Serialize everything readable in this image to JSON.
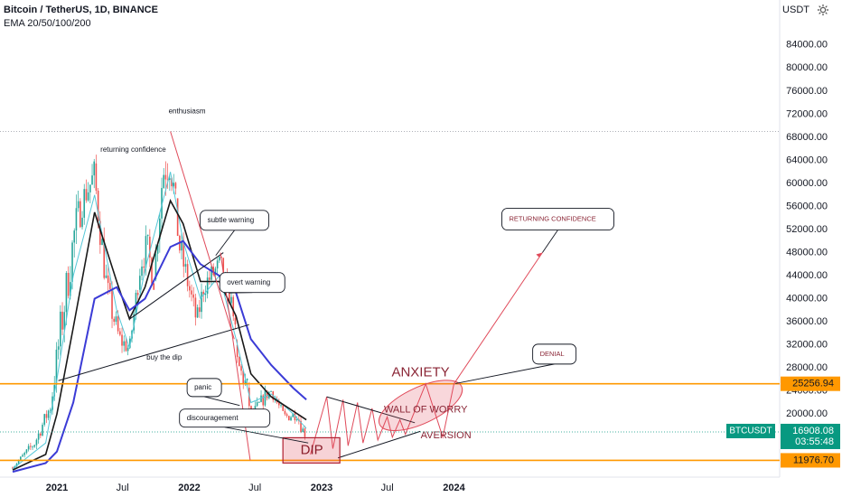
{
  "header": {
    "title": "Bitcoin / TetherUS, 1D, BINANCE",
    "indicator": "EMA 20/50/100/200",
    "currency": "USDT"
  },
  "icons": {
    "settings": "gear-icon"
  },
  "colors": {
    "candle_up": "#26a69a",
    "candle_down": "#ef5350",
    "ema20": "#55c8d8",
    "ema50": "#191919",
    "ema100": "#3b3bd6",
    "support_line": "#ff9800",
    "annotation_red": "#e04a5a",
    "tag_green": "#089981"
  },
  "chart_data": {
    "type": "line",
    "title": "Bitcoin / TetherUS, 1D, BINANCE",
    "indicator": "EMA 20/50/100/200",
    "y_axis_ticks": [
      "84000.00",
      "80000.00",
      "76000.00",
      "72000.00",
      "68000.00",
      "64000.00",
      "60000.00",
      "56000.00",
      "52000.00",
      "48000.00",
      "44000.00",
      "40000.00",
      "36000.00",
      "32000.00",
      "28000.00",
      "24000.00",
      "20000.00"
    ],
    "x_axis_ticks": [
      "2021",
      "Jul",
      "2022",
      "Jul",
      "2023",
      "Jul",
      "2024"
    ],
    "ylim": [
      8000,
      90000
    ],
    "series": [
      {
        "name": "EMA 20",
        "color": "#55c8d8",
        "x": [
          "2020-09-01",
          "2020-12-01",
          "2021-01-01",
          "2021-02-15",
          "2021-04-15",
          "2021-06-15",
          "2021-07-20",
          "2021-09-01",
          "2021-11-10",
          "2021-12-15",
          "2022-02-01",
          "2022-03-25",
          "2022-05-10",
          "2022-06-20",
          "2022-08-15",
          "2022-10-15",
          "2022-11-20"
        ],
        "values": [
          10500,
          15000,
          26000,
          44000,
          58000,
          38000,
          31500,
          45000,
          62000,
          50000,
          40000,
          44000,
          33000,
          22000,
          23500,
          20000,
          17500
        ]
      },
      {
        "name": "EMA 50",
        "color": "#191919",
        "x": [
          "2020-09-01",
          "2020-12-01",
          "2021-01-01",
          "2021-02-15",
          "2021-04-15",
          "2021-06-15",
          "2021-07-20",
          "2021-09-01",
          "2021-11-10",
          "2021-12-15",
          "2022-02-01",
          "2022-03-25",
          "2022-05-10",
          "2022-06-20",
          "2022-08-15",
          "2022-10-15",
          "2022-11-20"
        ],
        "values": [
          10300,
          13000,
          20000,
          35000,
          55000,
          43000,
          36500,
          42000,
          57000,
          53000,
          43000,
          43000,
          37000,
          27000,
          23000,
          20500,
          19000
        ]
      },
      {
        "name": "EMA 100",
        "color": "#3b3bd6",
        "x": [
          "2020-09-01",
          "2020-12-01",
          "2021-01-01",
          "2021-02-15",
          "2021-04-15",
          "2021-06-15",
          "2021-07-20",
          "2021-09-01",
          "2021-11-10",
          "2021-12-15",
          "2022-02-01",
          "2022-03-25",
          "2022-05-10",
          "2022-06-20",
          "2022-08-15",
          "2022-10-15",
          "2022-11-20"
        ],
        "values": [
          10000,
          11500,
          13500,
          22000,
          40000,
          42000,
          38000,
          40000,
          49000,
          50000,
          46000,
          44000,
          41000,
          33000,
          28500,
          24500,
          22500
        ]
      }
    ],
    "price_range_context": {
      "high": 69000,
      "high_date": "2021-11-10",
      "low": 15500,
      "low_date": "2022-11-21"
    },
    "horizontal_levels": [
      {
        "value": 25256.94,
        "label": "25256.94",
        "color": "#ff9800"
      },
      {
        "value": 11976.7,
        "label": "11976.70",
        "color": "#ff9800"
      }
    ],
    "last_price": {
      "symbol": "BTCUSDT",
      "price": "16908.08",
      "countdown": "03:55:48",
      "value": 16908.08
    },
    "annotations": [
      {
        "text": "enthusiasm",
        "x": "2021-11-05",
        "y": 72500
      },
      {
        "text": "returning confidence",
        "x": "2021-05-01",
        "y": 65800
      },
      {
        "text": "subtle warning",
        "x": "2022-02-20",
        "y": 53600
      },
      {
        "text": "overt warning",
        "x": "2022-04-15",
        "y": 42800
      },
      {
        "text": "buy the dip",
        "x": "2021-09-05",
        "y": 29800
      },
      {
        "text": "panic",
        "x": "2022-01-15",
        "y": 24600
      },
      {
        "text": "discouragement",
        "x": "2021-12-25",
        "y": 19300
      },
      {
        "text": "DIP",
        "x": "2022-12-05",
        "y": 13700
      },
      {
        "text": "ANXIETY",
        "x": "2023-10-01",
        "y": 27200
      },
      {
        "text": "WALL OF WORRY",
        "x": "2023-10-15",
        "y": 20700
      },
      {
        "text": "AVERSION",
        "x": "2023-12-10",
        "y": 16300
      },
      {
        "text": "DENIAL",
        "x": "2024-08-25",
        "y": 30400
      },
      {
        "text": "RETURNING CONFIDENCE",
        "x": "2024-06-01",
        "y": 53800
      }
    ],
    "projection_path": {
      "x": [
        "2022-12-01",
        "2023-01-15",
        "2023-02-01",
        "2023-03-01",
        "2023-03-15",
        "2023-04-10",
        "2023-04-25",
        "2023-05-20",
        "2023-06-05",
        "2023-07-01",
        "2023-07-15",
        "2023-08-05",
        "2023-08-20",
        "2023-10-15",
        "2023-12-01",
        "2024-01-01",
        "2024-09-01"
      ],
      "values": [
        13000,
        23000,
        14000,
        22500,
        14500,
        22000,
        15000,
        21000,
        15500,
        19500,
        16000,
        19000,
        16500,
        25256.94,
        16000,
        25256.94,
        48000
      ]
    },
    "grid": false,
    "legend": "top-left"
  }
}
